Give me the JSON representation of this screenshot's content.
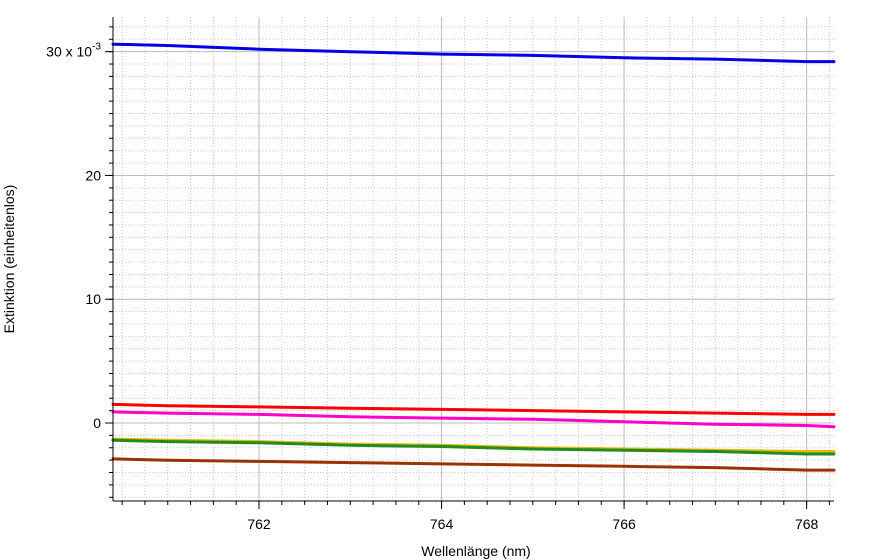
{
  "chart_data": {
    "type": "line",
    "title": "",
    "xlabel": "Wellenlänge (nm)",
    "ylabel": "Extinktion (einheitenlos)",
    "xlim": [
      760.4,
      768.3
    ],
    "ylim": [
      -0.0063,
      0.0328
    ],
    "x_ticks": [
      762,
      764,
      766,
      768
    ],
    "x_tick_labels": [
      "762",
      "764",
      "766",
      "768"
    ],
    "y_ticks": [
      0,
      0.01,
      0.02,
      0.03
    ],
    "y_tick_labels": [
      "0",
      "10",
      "20",
      "30 x 10"
    ],
    "y_exponent_label": "-3",
    "grid": true,
    "series": [
      {
        "color": "#0000e6",
        "x": [
          760.4,
          761.0,
          762.0,
          763.0,
          764.0,
          765.0,
          766.0,
          767.0,
          768.0,
          768.3
        ],
        "y": [
          0.0306,
          0.0305,
          0.0302,
          0.03,
          0.0298,
          0.0297,
          0.0295,
          0.0294,
          0.0292,
          0.0292
        ]
      },
      {
        "color": "#ff0000",
        "x": [
          760.4,
          761.0,
          762.0,
          763.0,
          764.0,
          765.0,
          766.0,
          767.0,
          768.0,
          768.3
        ],
        "y": [
          0.0015,
          0.0014,
          0.0013,
          0.0012,
          0.0011,
          0.001,
          0.0009,
          0.0008,
          0.0007,
          0.0007
        ]
      },
      {
        "color": "#ff00cc",
        "x": [
          760.4,
          761.0,
          762.0,
          763.0,
          764.0,
          765.0,
          766.0,
          767.0,
          768.0,
          768.3
        ],
        "y": [
          0.0009,
          0.0008,
          0.0007,
          0.0005,
          0.0004,
          0.0003,
          0.0001,
          -0.0001,
          -0.0002,
          -0.0003
        ]
      },
      {
        "color": "#e6b800",
        "x": [
          760.4,
          761.0,
          762.0,
          763.0,
          764.0,
          765.0,
          766.0,
          767.0,
          768.0,
          768.3
        ],
        "y": [
          -0.0013,
          -0.0014,
          -0.0015,
          -0.0017,
          -0.0018,
          -0.002,
          -0.0021,
          -0.0022,
          -0.0023,
          -0.0023
        ]
      },
      {
        "color": "#228b22",
        "x": [
          760.4,
          761.0,
          762.0,
          763.0,
          764.0,
          765.0,
          766.0,
          767.0,
          768.0,
          768.3
        ],
        "y": [
          -0.0014,
          -0.0015,
          -0.0016,
          -0.0018,
          -0.0019,
          -0.0021,
          -0.0022,
          -0.0023,
          -0.0025,
          -0.0025
        ]
      },
      {
        "color": "#993300",
        "x": [
          760.4,
          761.0,
          762.0,
          763.0,
          764.0,
          765.0,
          766.0,
          767.0,
          768.0,
          768.3
        ],
        "y": [
          -0.0029,
          -0.003,
          -0.0031,
          -0.0032,
          -0.0033,
          -0.0034,
          -0.0035,
          -0.0036,
          -0.0038,
          -0.0038
        ]
      }
    ]
  }
}
